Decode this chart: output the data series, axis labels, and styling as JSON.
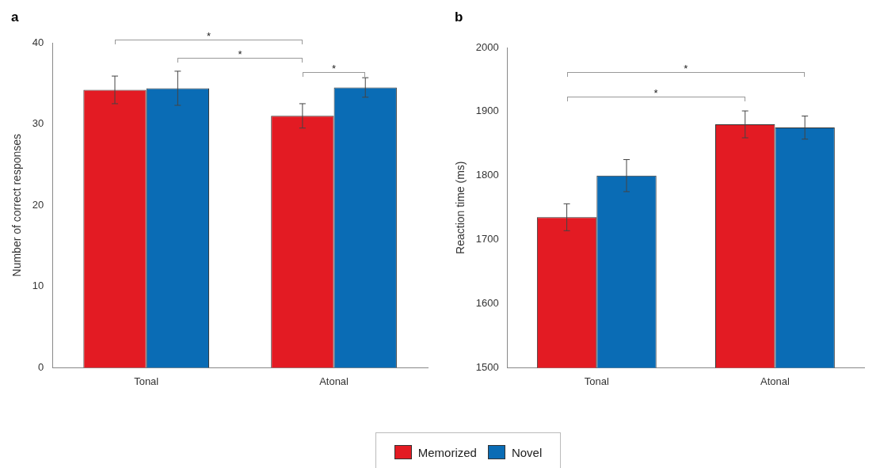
{
  "chart_data": [
    {
      "type": "bar",
      "title": "a",
      "ylabel": "Number of correct responses",
      "categories": [
        "Tonal",
        "Atonal"
      ],
      "ylim": [
        0,
        40
      ],
      "yticks": [
        0,
        10,
        20,
        30,
        40
      ],
      "grid": false,
      "legend": "bottom",
      "series": [
        {
          "name": "Memorized",
          "color": "#e31b23",
          "values": [
            34.2,
            31.0
          ],
          "errors": [
            1.7,
            1.5
          ]
        },
        {
          "name": "Novel",
          "color": "#0a6cb5",
          "values": [
            34.4,
            34.5
          ],
          "errors": [
            2.1,
            1.2
          ]
        }
      ],
      "annotations": [
        "*",
        "*",
        "*"
      ]
    },
    {
      "type": "bar",
      "title": "b",
      "ylabel": "Reaction time (ms)",
      "categories": [
        "Tonal",
        "Atonal"
      ],
      "ylim": [
        1500,
        2000
      ],
      "yticks": [
        1500,
        1600,
        1700,
        1800,
        1900,
        2000
      ],
      "grid": false,
      "series": [
        {
          "color": "#e31b23",
          "values": [
            1735,
            1880
          ],
          "errors": [
            21,
            21
          ]
        },
        {
          "color": "#0a6cb5",
          "values": [
            1800,
            1875
          ],
          "errors": [
            25,
            18
          ]
        }
      ],
      "annotations": [
        "*",
        "*"
      ]
    }
  ]
}
